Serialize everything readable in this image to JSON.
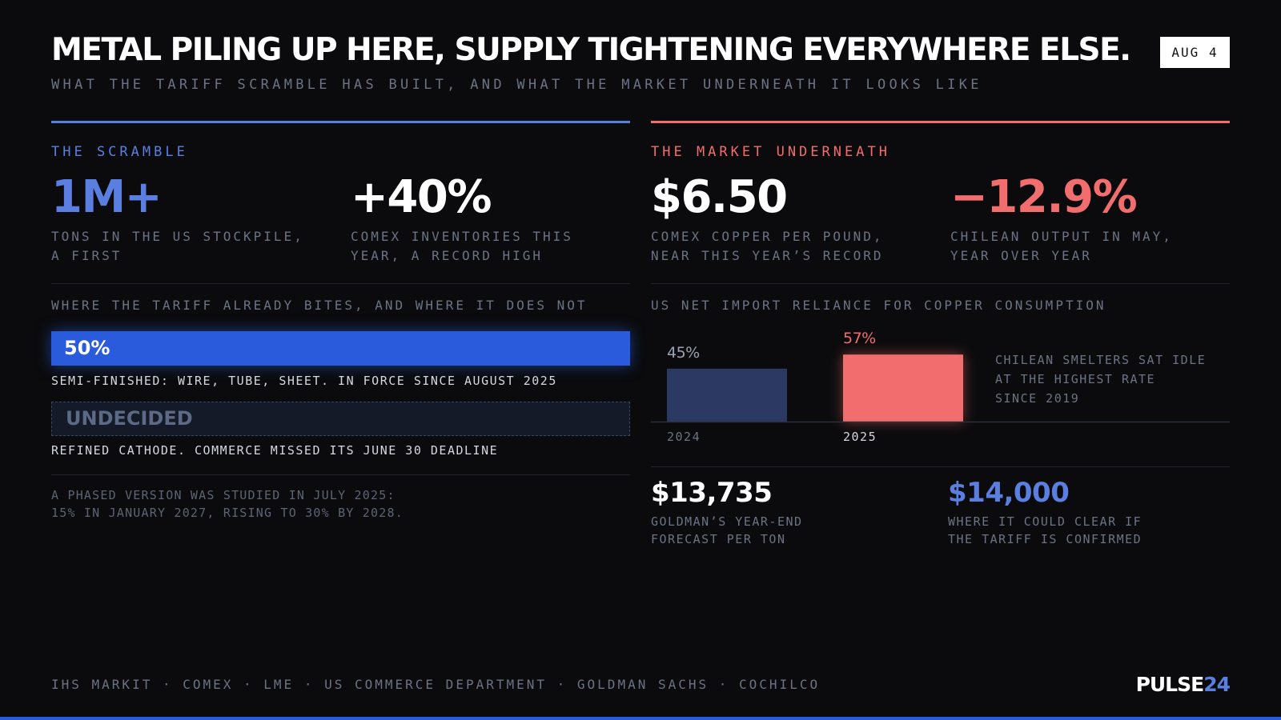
{
  "header": {
    "title": "METAL PILING UP HERE, SUPPLY TIGHTENING EVERYWHERE ELSE.",
    "subtitle": "WHAT THE TARIFF SCRAMBLE HAS BUILT, AND WHAT THE MARKET UNDERNEATH IT LOOKS LIKE",
    "date": "AUG 4"
  },
  "left": {
    "label": "THE SCRAMBLE",
    "stats": [
      {
        "value": "1M+",
        "caption": [
          "TONS IN THE US STOCKPILE,",
          "A FIRST"
        ]
      },
      {
        "value": "+40%",
        "caption": [
          "COMEX INVENTORIES THIS",
          "YEAR, A RECORD HIGH"
        ]
      }
    ],
    "heading": "WHERE THE TARIFF ALREADY BITES, AND WHERE IT DOES NOT",
    "tariffs": [
      {
        "badge": "50%",
        "caption": "SEMI-FINISHED: WIRE, TUBE, SHEET. IN FORCE SINCE AUGUST 2025"
      },
      {
        "badge": "UNDECIDED",
        "caption": "REFINED CATHODE. COMMERCE MISSED ITS JUNE 30 DEADLINE"
      }
    ],
    "note": [
      "A PHASED VERSION WAS STUDIED IN JULY 2025:",
      "15% IN JANUARY 2027, RISING TO 30% BY 2028."
    ]
  },
  "right": {
    "label": "THE MARKET UNDERNEATH",
    "stats": [
      {
        "value": "$6.50",
        "caption": [
          "COMEX COPPER PER POUND,",
          "NEAR THIS YEAR’S RECORD"
        ]
      },
      {
        "value": "−12.9%",
        "caption": [
          "CHILEAN OUTPUT IN MAY,",
          "YEAR OVER YEAR"
        ]
      }
    ],
    "chart": {
      "type": "bar",
      "title": "US NET IMPORT RELIANCE FOR COPPER CONSUMPTION",
      "categories": [
        "2024",
        "2025"
      ],
      "values": [
        45,
        57
      ],
      "value_labels": [
        "45%",
        "57%"
      ],
      "colors": [
        "#2c3a63",
        "#f26d6d"
      ]
    },
    "note": [
      "CHILEAN SMELTERS SAT IDLE",
      "AT THE HIGHEST RATE",
      "SINCE 2019"
    ],
    "forecasts": [
      {
        "value": "$13,735",
        "caption": [
          "GOLDMAN’S YEAR-END",
          "FORECAST PER TON"
        ]
      },
      {
        "value": "$14,000",
        "caption": [
          "WHERE IT COULD CLEAR IF",
          "THE TARIFF IS CONFIRMED"
        ]
      }
    ]
  },
  "footer": {
    "sources": "IHS MARKIT · COMEX · LME · US COMMERCE DEPARTMENT · GOLDMAN SACHS · COCHILCO",
    "brand": [
      "PULSE",
      "24"
    ]
  }
}
